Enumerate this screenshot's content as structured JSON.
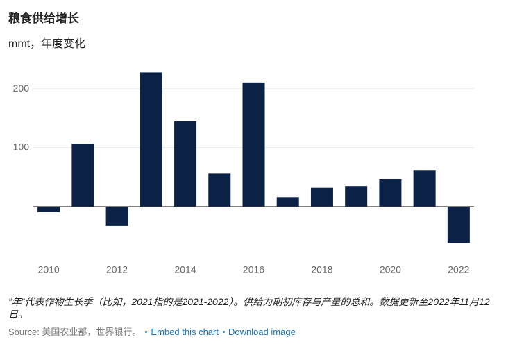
{
  "chart_data": {
    "type": "bar",
    "title": "粮食供给增长",
    "subtitle": "mmt，年度变化",
    "x": [
      2010,
      2011,
      2012,
      2013,
      2014,
      2015,
      2016,
      2017,
      2018,
      2019,
      2020,
      2021,
      2022
    ],
    "values": [
      -9,
      107,
      -33,
      228,
      145,
      56,
      211,
      16,
      32,
      35,
      47,
      62,
      -62
    ],
    "color": "#0b2145",
    "xlim": [
      2009.55,
      2022.45
    ],
    "xticks": [
      2010,
      2012,
      2014,
      2016,
      2018,
      2020,
      2022
    ],
    "ylim": [
      -85,
      245
    ],
    "yticks": [
      100,
      200
    ],
    "grid": true,
    "note": "“年”代表作物生长季（比如，2021指的是2021-2022）。供给为期初库存与产量的总和。数据更新至2022年11月12日。",
    "source": "Source: 美国农业部，世界银行。",
    "links": [
      "Embed this chart",
      "Download image"
    ]
  }
}
